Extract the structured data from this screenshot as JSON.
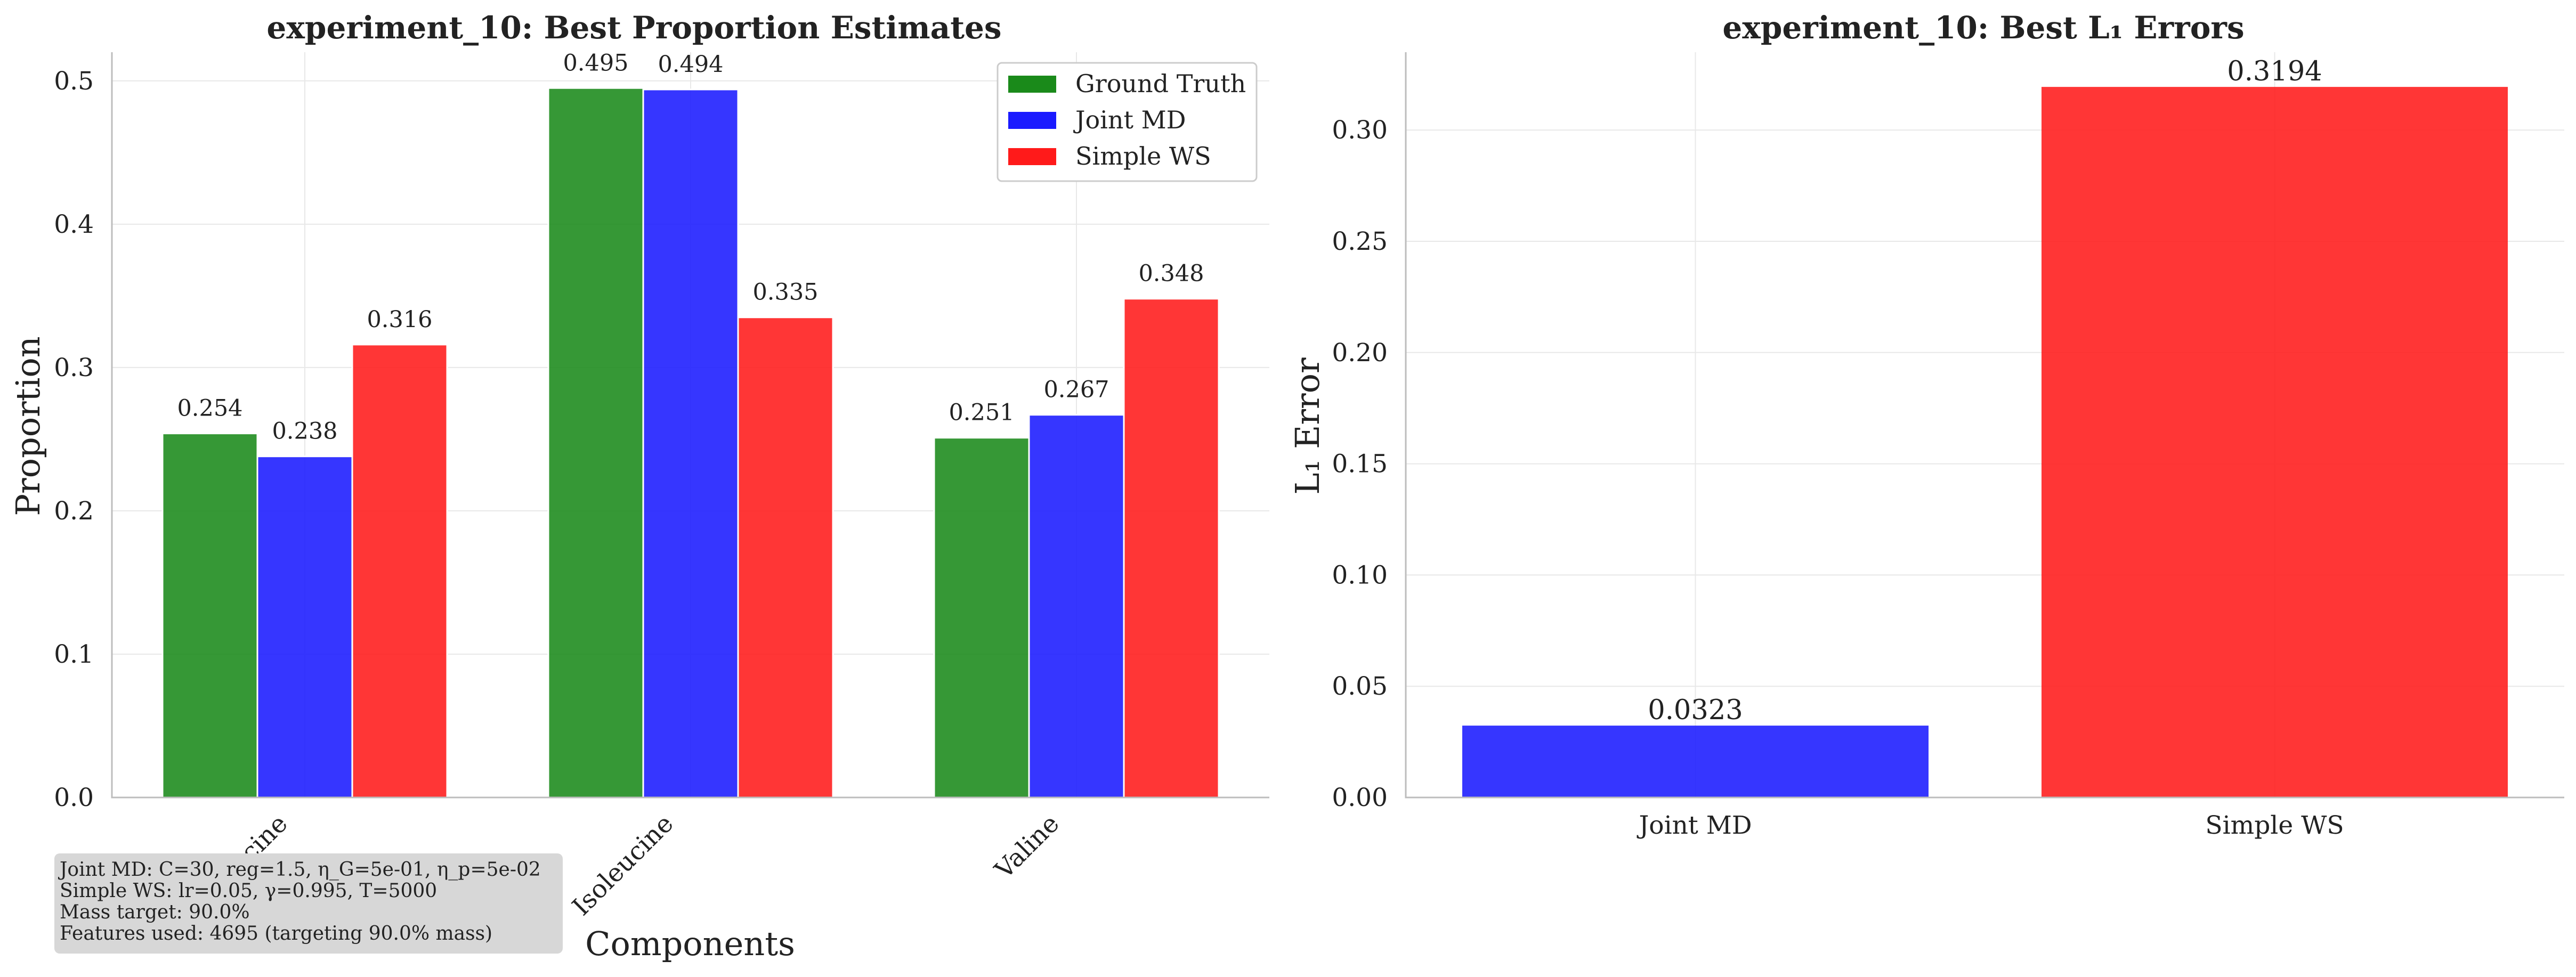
{
  "chart_data": [
    {
      "type": "bar",
      "title": "experiment_10: Best Proportion Estimates",
      "xlabel": "Components",
      "ylabel": "Proportion",
      "categories": [
        "Leucine",
        "Isoleucine",
        "Valine"
      ],
      "series": [
        {
          "name": "Ground Truth",
          "color": "#1a8a1a",
          "values": [
            0.254,
            0.495,
            0.251
          ],
          "labels": [
            "0.254",
            "0.495",
            "0.251"
          ]
        },
        {
          "name": "Joint MD",
          "color": "#1a1aff",
          "values": [
            0.238,
            0.494,
            0.267
          ],
          "labels": [
            "0.238",
            "0.494",
            "0.267"
          ]
        },
        {
          "name": "Simple WS",
          "color": "#ff1a1a",
          "values": [
            0.316,
            0.335,
            0.348
          ],
          "labels": [
            "0.316",
            "0.335",
            "0.348"
          ]
        }
      ],
      "ylim": [
        0,
        0.52
      ],
      "yticks": [
        "0.0",
        "0.1",
        "0.2",
        "0.3",
        "0.4",
        "0.5"
      ],
      "grid": true,
      "legend": "top-right",
      "annotation": [
        "Joint MD: C=30, reg=1.5, η_G=5e-01, η_p=5e-02",
        "Simple WS: lr=0.05, γ=0.995, T=5000",
        "Mass target: 90.0%",
        "Features used: 4695 (targeting 90.0% mass)"
      ]
    },
    {
      "type": "bar",
      "title": "experiment_10: Best L₁ Errors",
      "xlabel": "",
      "ylabel": "L₁ Error",
      "categories": [
        "Joint MD",
        "Simple WS"
      ],
      "values": [
        0.0323,
        0.3194
      ],
      "labels": [
        "0.0323",
        "0.3194"
      ],
      "colors": [
        "#1a1aff",
        "#ff1a1a"
      ],
      "ylim": [
        0,
        0.335
      ],
      "yticks": [
        "0.00",
        "0.05",
        "0.10",
        "0.15",
        "0.20",
        "0.25",
        "0.30"
      ],
      "grid": true
    }
  ]
}
